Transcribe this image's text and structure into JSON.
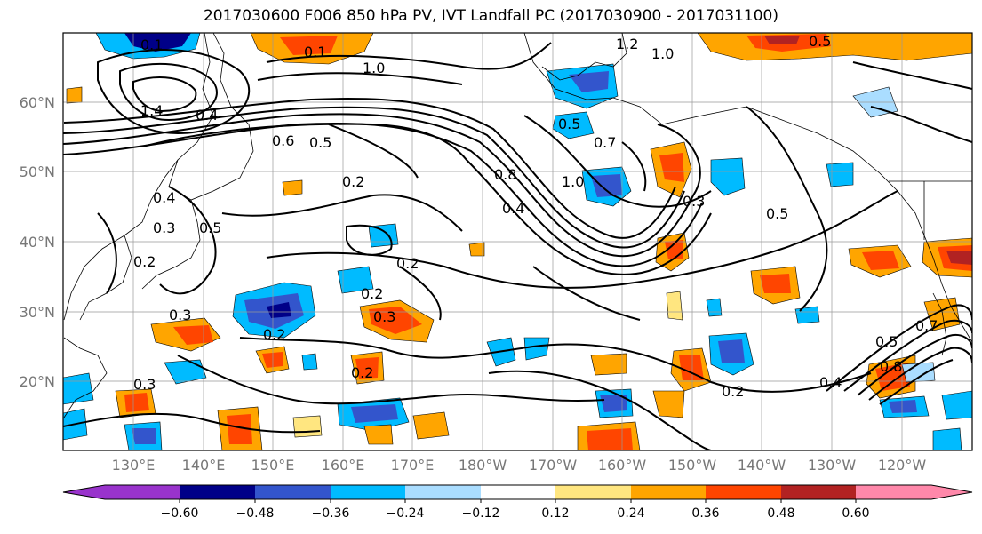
{
  "title": "2017030600 F006 850 hPa PV, IVT Landfall PC (2017030900 - 2017031100)",
  "lat_labels": [
    "60°N",
    "50°N",
    "40°N",
    "30°N",
    "20°N"
  ],
  "lon_labels": [
    "130°E",
    "140°E",
    "150°E",
    "160°E",
    "170°E",
    "180°W",
    "170°W",
    "160°W",
    "150°W",
    "140°W",
    "130°W",
    "120°W"
  ],
  "colorbar": {
    "colors": [
      "#9933cc",
      "#000088",
      "#3355cc",
      "#00bbff",
      "#aaddff",
      "#ffffff",
      "#ffe680",
      "#ffa500",
      "#ff4500",
      "#b22222",
      "#ff88aa"
    ],
    "ticks": [
      "−0.60",
      "−0.48",
      "−0.36",
      "−0.24",
      "−0.12",
      "0.12",
      "0.24",
      "0.36",
      "0.48",
      "0.60"
    ]
  },
  "contour_labels": [
    "0.1",
    "1.0",
    "1.2",
    "1.0",
    "0.5",
    "0.1",
    "1.4",
    "0.4",
    "0.6",
    "0.5",
    "0.2",
    "0.5",
    "0.7",
    "1.0",
    "0.8",
    "0.4",
    "0.3",
    "0.5",
    "0.4",
    "0.3",
    "0.2",
    "0.5",
    "0.2",
    "0.2",
    "0.3",
    "0.2",
    "0.3",
    "0.3",
    "0.2",
    "0.2",
    "0.5",
    "0.8",
    "0.4",
    "0.7"
  ]
}
